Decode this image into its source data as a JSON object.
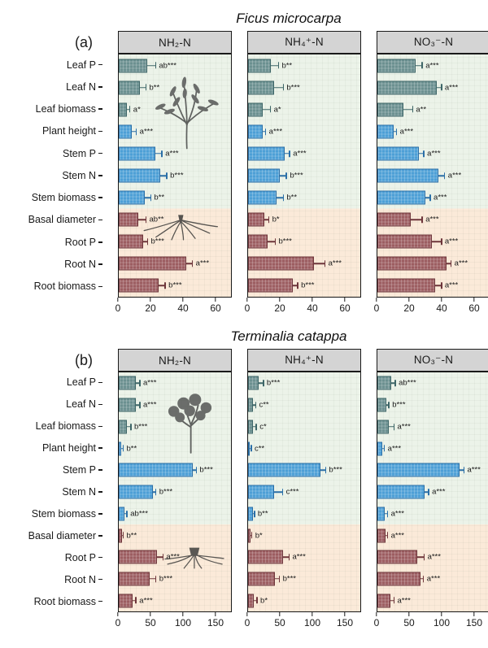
{
  "style": {
    "frame_color": "#1a1a1a",
    "header_bg": "#d4d4d4",
    "bg_upper": "#ecf3e9",
    "bg_lower": "#fbead9",
    "groups": {
      "leaf": {
        "fill": "#6b9090",
        "edge": "#3e6668"
      },
      "stem": {
        "fill": "#4d9fd6",
        "edge": "#2b6fa7"
      },
      "root": {
        "fill": "#9c5d61",
        "edge": "#6e363b"
      }
    },
    "category_groups": [
      "leaf",
      "leaf",
      "leaf",
      "stem",
      "stem",
      "stem",
      "stem",
      "root",
      "root",
      "root",
      "root"
    ],
    "upper_region_rows": 7
  },
  "icons": {
    "panel_a_canopy": "ficus-tree-icon",
    "panel_a_roots": "fibrous-roots-icon",
    "panel_b_canopy": "terminalia-tree-icon",
    "panel_b_roots": "root-stump-icon"
  },
  "chart_data": [
    {
      "type": "bar",
      "orientation": "horizontal",
      "panel_label": "(a)",
      "species_title": "Ficus microcarpa",
      "categories": [
        "Leaf P",
        "Leaf N",
        "Leaf biomass",
        "Plant height",
        "Stem P",
        "Stem N",
        "Stem biomass",
        "Basal diameter",
        "Root P",
        "Root N",
        "Root biomass"
      ],
      "xlim": [
        0,
        70
      ],
      "xticks": [
        0,
        20,
        40,
        60
      ],
      "series": [
        {
          "name": "NH₂-N",
          "values": [
            18,
            13,
            5,
            8,
            23,
            26,
            16,
            12,
            15,
            42,
            25
          ],
          "errors": [
            5,
            4,
            2,
            3,
            4,
            4,
            4,
            5,
            3,
            4,
            4
          ],
          "sig_labels": [
            "ab***",
            "b**",
            "a*",
            "a***",
            "a***",
            "b***",
            "b**",
            "ab**",
            "b***",
            "a***",
            "b***"
          ]
        },
        {
          "name": "NH₄⁺-N",
          "values": [
            14,
            16,
            9,
            9,
            23,
            20,
            18,
            10,
            12,
            41,
            28
          ],
          "errors": [
            5,
            6,
            5,
            2,
            3,
            4,
            4,
            3,
            5,
            7,
            3
          ],
          "sig_labels": [
            "b**",
            "b***",
            "a*",
            "a***",
            "a***",
            "b***",
            "b**",
            "b*",
            "b***",
            "a***",
            "b***"
          ]
        },
        {
          "name": "NO₃⁻-N",
          "values": [
            24,
            37,
            16,
            10,
            26,
            38,
            30,
            21,
            34,
            43,
            36
          ],
          "errors": [
            4,
            3,
            6,
            2,
            3,
            4,
            3,
            7,
            6,
            3,
            4
          ],
          "sig_labels": [
            "a***",
            "a***",
            "a**",
            "a***",
            "a***",
            "a***",
            "a***",
            "a***",
            "a***",
            "a***",
            "a***"
          ]
        }
      ]
    },
    {
      "type": "bar",
      "orientation": "horizontal",
      "panel_label": "(b)",
      "species_title": "Terminalia catappa",
      "categories": [
        "Leaf P",
        "Leaf N",
        "Leaf biomass",
        "Plant height",
        "Stem P",
        "Stem N",
        "Stem biomass",
        "Basal diameter",
        "Root P",
        "Root N",
        "Root biomass"
      ],
      "xlim": [
        0,
        175
      ],
      "xticks": [
        0,
        50,
        100,
        150
      ],
      "series": [
        {
          "name": "NH₂-N",
          "values": [
            27,
            27,
            13,
            4,
            115,
            53,
            9,
            5,
            60,
            48,
            22
          ],
          "errors": [
            6,
            6,
            6,
            3,
            6,
            5,
            4,
            2,
            9,
            10,
            5
          ],
          "sig_labels": [
            "a***",
            "a***",
            "b***",
            "b**",
            "b***",
            "b***",
            "ab***",
            "b**",
            "a***",
            "b***",
            "a***"
          ]
        },
        {
          "name": "NH₄⁺-N",
          "values": [
            17,
            8,
            8,
            2,
            113,
            41,
            7,
            4,
            55,
            42,
            9
          ],
          "errors": [
            7,
            4,
            5,
            3,
            8,
            13,
            3,
            2,
            9,
            7,
            5
          ],
          "sig_labels": [
            "b***",
            "c**",
            "c*",
            "c**",
            "b***",
            "c***",
            "b**",
            "b*",
            "a***",
            "b***",
            "b*"
          ]
        },
        {
          "name": "NO₃⁻-N",
          "values": [
            22,
            14,
            18,
            8,
            128,
            73,
            12,
            13,
            62,
            67,
            20
          ],
          "errors": [
            6,
            4,
            8,
            3,
            7,
            7,
            4,
            3,
            11,
            5,
            6
          ],
          "sig_labels": [
            "ab***",
            "b***",
            "a***",
            "a***",
            "a***",
            "a***",
            "a***",
            "a***",
            "a***",
            "a***",
            "a***"
          ]
        }
      ]
    }
  ]
}
